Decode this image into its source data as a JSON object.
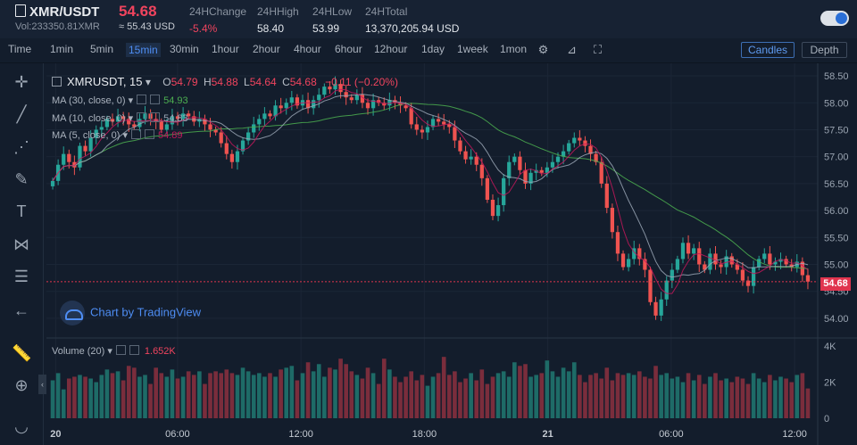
{
  "header": {
    "pair": "XMR/USDT",
    "volume": "Vol:233350.81XMR",
    "price": "54.68",
    "usd": "≈ 55.43 USD",
    "stats": [
      {
        "key": "24HChange",
        "value": "-5.4%",
        "neg": true
      },
      {
        "key": "24HHigh",
        "value": "58.40"
      },
      {
        "key": "24HLow",
        "value": "53.99"
      },
      {
        "key": "24HTotal",
        "value": "13,370,205.94 USD"
      }
    ]
  },
  "toolbar": {
    "time_label": "Time",
    "intervals": [
      "1min",
      "5min",
      "15min",
      "30min",
      "1hour",
      "2hour",
      "4hour",
      "6hour",
      "12hour",
      "1day",
      "1week",
      "1mon"
    ],
    "active_interval": "15min",
    "candles_label": "Candles",
    "depth_label": "Depth"
  },
  "legend": {
    "symbol": "XMRUSDT, 15",
    "o_label": "O",
    "o": "54.79",
    "h_label": "H",
    "h": "54.88",
    "l_label": "L",
    "l": "54.64",
    "c_label": "C",
    "c": "54.68",
    "change": "−0.11 (−0.20%)"
  },
  "ma": [
    {
      "label": "MA (30, close, 0)",
      "value": "54.93",
      "color": "#4caf50"
    },
    {
      "label": "MA (10, close, 0)",
      "value": "54.83",
      "color": "#9aa6b5"
    },
    {
      "label": "MA (5, close, 0)",
      "value": "54.89",
      "color": "#c2185b"
    }
  ],
  "brand": "Chart by TradingView",
  "volume_legend": {
    "label": "Volume (20)",
    "value": "1.652K"
  },
  "last_price_tag": "54.68",
  "colors": {
    "up": "#26a69a",
    "down": "#ef5350",
    "bg": "#131d2c",
    "accent": "#4e8df3"
  },
  "chart_data": {
    "type": "candlestick",
    "price_axis": [
      "58.50",
      "58.00",
      "57.50",
      "57.00",
      "56.50",
      "56.00",
      "55.50",
      "55.00",
      "54.50",
      "54.00"
    ],
    "price_range": [
      53.75,
      58.65
    ],
    "volume_axis": [
      "4K",
      "2K",
      "0"
    ],
    "volume_range": [
      0,
      4200
    ],
    "time_labels": [
      "20",
      "06:00",
      "12:00",
      "18:00",
      "21",
      "06:00",
      "12:00"
    ],
    "last_price": 54.68,
    "closes": [
      56.55,
      56.85,
      57.05,
      56.9,
      56.8,
      57.2,
      57.1,
      57.35,
      57.5,
      57.55,
      57.7,
      57.65,
      57.75,
      57.7,
      57.6,
      57.55,
      57.7,
      57.8,
      57.7,
      57.65,
      57.5,
      57.6,
      57.75,
      57.7,
      57.8,
      57.75,
      57.65,
      57.7,
      57.6,
      57.5,
      57.45,
      57.25,
      57.05,
      56.9,
      57.1,
      57.3,
      57.45,
      57.6,
      57.7,
      57.8,
      57.75,
      57.95,
      57.9,
      58.0,
      58.1,
      57.95,
      58.05,
      57.9,
      58.05,
      58.15,
      58.3,
      58.25,
      58.35,
      58.2,
      58.1,
      58.05,
      58.15,
      58.0,
      57.9,
      58.05,
      58.0,
      57.95,
      58.05,
      58.0,
      57.95,
      57.9,
      57.6,
      57.5,
      57.45,
      57.55,
      57.7,
      57.65,
      57.6,
      57.55,
      57.3,
      57.1,
      56.95,
      57.0,
      56.85,
      56.6,
      56.2,
      55.9,
      56.1,
      56.6,
      56.9,
      57.0,
      56.75,
      56.5,
      56.7,
      56.75,
      56.7,
      56.8,
      56.9,
      57.0,
      57.1,
      57.25,
      57.35,
      57.3,
      57.2,
      57.05,
      56.9,
      56.5,
      56.05,
      55.6,
      55.2,
      54.95,
      55.1,
      55.3,
      55.1,
      54.9,
      54.3,
      54.05,
      54.35,
      54.7,
      54.9,
      55.1,
      55.4,
      55.2,
      55.3,
      55.0,
      54.9,
      55.2,
      55.0,
      54.95,
      55.15,
      55.0,
      54.9,
      54.7,
      54.6,
      54.95,
      55.1,
      55.2,
      55.0,
      55.05,
      55.1,
      55.0,
      54.95,
      55.05,
      54.8,
      54.68
    ],
    "volumes": [
      2.1,
      2.5,
      1.6,
      2.2,
      2.3,
      2.4,
      2.3,
      2.2,
      2.0,
      2.4,
      2.7,
      2.5,
      2.6,
      2.1,
      2.9,
      2.8,
      2.3,
      2.4,
      1.9,
      2.8,
      2.5,
      2.3,
      2.7,
      2.2,
      2.3,
      2.6,
      2.4,
      2.6,
      1.9,
      2.5,
      2.6,
      2.5,
      2.7,
      2.5,
      2.4,
      2.8,
      2.6,
      2.4,
      2.5,
      2.3,
      2.5,
      2.3,
      2.7,
      2.8,
      2.9,
      2.1,
      2.5,
      3.1,
      2.6,
      3.0,
      2.3,
      2.8,
      2.7,
      3.3,
      3.0,
      2.6,
      2.4,
      2.2,
      2.8,
      2.5,
      1.9,
      3.3,
      2.7,
      2.3,
      2.0,
      2.3,
      2.6,
      2.1,
      2.4,
      1.8,
      2.3,
      2.5,
      3.4,
      2.4,
      2.6,
      2.0,
      2.2,
      2.5,
      2.1,
      2.7,
      1.9,
      2.3,
      2.5,
      2.6,
      2.3,
      3.1,
      2.9,
      3.0,
      2.3,
      2.4,
      2.5,
      3.2,
      2.6,
      2.3,
      2.8,
      2.6,
      3.1,
      2.4,
      2.0,
      2.4,
      2.5,
      2.2,
      2.8,
      2.1,
      2.5,
      2.4,
      2.5,
      2.4,
      2.6,
      2.3,
      2.2,
      2.9,
      2.4,
      2.5,
      2.2,
      2.3,
      2.0,
      2.5,
      2.1,
      2.4,
      1.9,
      2.3,
      2.5,
      2.1,
      2.2,
      2.0,
      2.3,
      2.2,
      1.9,
      2.5,
      2.2,
      2.0,
      2.4,
      2.1,
      2.3,
      2.2,
      2.0,
      2.4,
      2.5,
      1.65
    ]
  }
}
